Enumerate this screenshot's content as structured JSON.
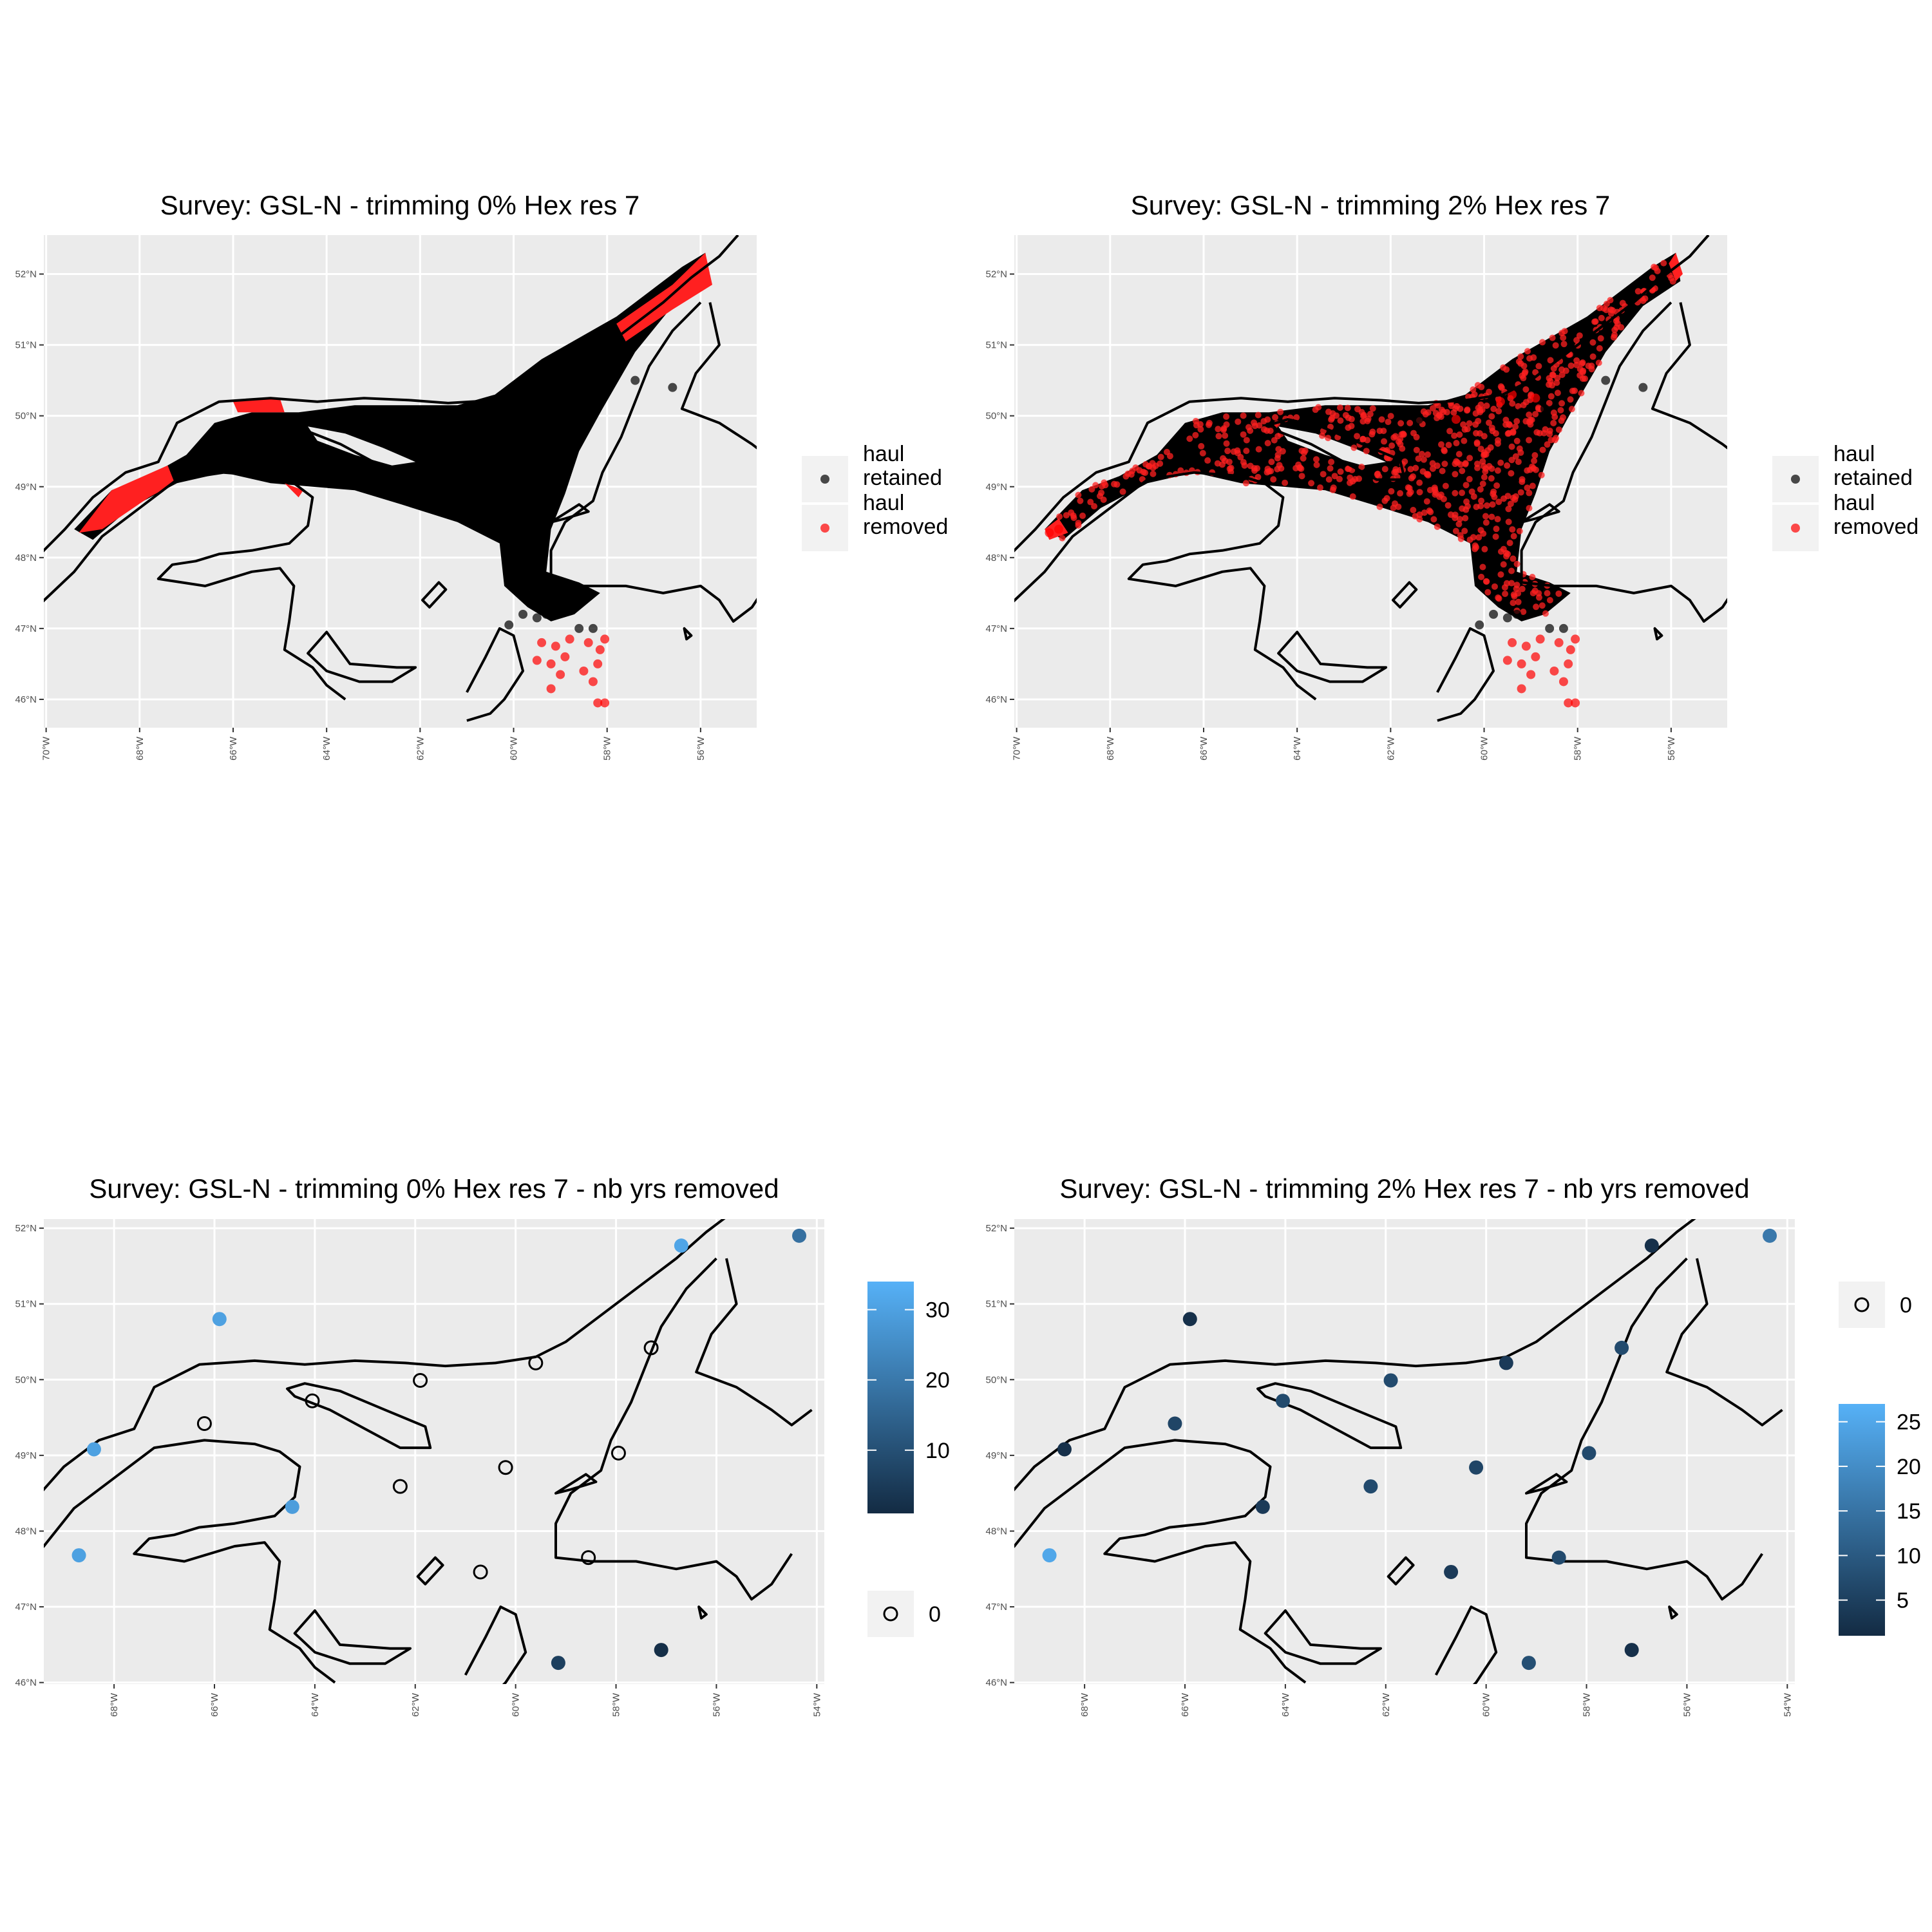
{
  "chart_data": [
    {
      "id": "p1",
      "type": "scatter",
      "map": "Gulf of St. Lawrence",
      "title": "Survey: GSL-N - trimming 0% Hex res 7",
      "xlim": [
        -70.05,
        -54.8
      ],
      "ylim": [
        45.6,
        52.55
      ],
      "x_ticks": [
        -70,
        -68,
        -66,
        -64,
        -62,
        -60,
        -58,
        -56
      ],
      "y_ticks": [
        46,
        47,
        48,
        49,
        50,
        51,
        52
      ],
      "x_tick_labels": [
        "70°W",
        "68°W",
        "66°W",
        "64°W",
        "62°W",
        "60°W",
        "58°W",
        "56°W"
      ],
      "y_tick_labels": [
        "46°N",
        "47°N",
        "48°N",
        "49°N",
        "50°N",
        "51°N",
        "52°N"
      ],
      "legend": {
        "placement": "right",
        "entries": [
          {
            "label": [
              "haul",
              "retained"
            ],
            "color": "#000000"
          },
          {
            "label": [
              "haul",
              "removed"
            ],
            "color": "#ff0000"
          }
        ]
      },
      "retained_region": "northern Gulf deep channels (estuary to Strait of Belle Isle)",
      "removed_region": [
        "upper estuary 67.3–69.3°W",
        "north shore patch near 65–66°W",
        "Strait of Belle Isle 56–57.6°N tip",
        "Cabot Strait outliers"
      ],
      "removed_points": [
        [
          -59.4,
          46.8
        ],
        [
          -59.1,
          46.75
        ],
        [
          -58.8,
          46.85
        ],
        [
          -58.4,
          46.8
        ],
        [
          -58.15,
          46.7
        ],
        [
          -58.05,
          46.85
        ],
        [
          -59.5,
          46.55
        ],
        [
          -59.2,
          46.5
        ],
        [
          -58.9,
          46.6
        ],
        [
          -58.2,
          46.5
        ],
        [
          -58.5,
          46.4
        ],
        [
          -59.0,
          46.35
        ],
        [
          -58.3,
          46.25
        ],
        [
          -59.2,
          46.15
        ],
        [
          -58.2,
          45.95
        ],
        [
          -58.05,
          45.95
        ]
      ],
      "retained_outliers": [
        [
          -60.1,
          47.05
        ],
        [
          -59.8,
          47.2
        ],
        [
          -59.5,
          47.15
        ],
        [
          -59.3,
          47.2
        ],
        [
          -58.6,
          47.0
        ],
        [
          -58.3,
          47.0
        ],
        [
          -56.6,
          50.4
        ],
        [
          -57.4,
          50.5
        ],
        [
          -58.7,
          50.1
        ],
        [
          -59.2,
          50.05
        ],
        [
          -61.4,
          49.95
        ]
      ]
    },
    {
      "id": "p2",
      "type": "scatter",
      "map": "Gulf of St. Lawrence",
      "title": "Survey: GSL-N - trimming 2% Hex res 7",
      "xlim": [
        -70.05,
        -54.8
      ],
      "ylim": [
        45.6,
        52.55
      ],
      "x_ticks": [
        -70,
        -68,
        -66,
        -64,
        -62,
        -60,
        -58,
        -56
      ],
      "y_ticks": [
        46,
        47,
        48,
        49,
        50,
        51,
        52
      ],
      "x_tick_labels": [
        "70°W",
        "68°W",
        "66°W",
        "64°W",
        "62°W",
        "60°W",
        "58°W",
        "56°W"
      ],
      "y_tick_labels": [
        "46°N",
        "47°N",
        "48°N",
        "49°N",
        "50°N",
        "51°N",
        "52°N"
      ],
      "legend": {
        "placement": "right",
        "entries": [
          {
            "label": [
              "haul",
              "retained"
            ],
            "color": "#000000"
          },
          {
            "label": [
              "haul",
              "removed"
            ],
            "color": "#ff0000"
          }
        ]
      },
      "removed_region": "scattered throughout the surveyed area",
      "removed_points": [
        [
          -59.4,
          46.8
        ],
        [
          -59.1,
          46.75
        ],
        [
          -58.8,
          46.85
        ],
        [
          -58.4,
          46.8
        ],
        [
          -58.15,
          46.7
        ],
        [
          -58.05,
          46.85
        ],
        [
          -59.5,
          46.55
        ],
        [
          -59.2,
          46.5
        ],
        [
          -58.9,
          46.6
        ],
        [
          -58.2,
          46.5
        ],
        [
          -58.5,
          46.4
        ],
        [
          -59.0,
          46.35
        ],
        [
          -58.3,
          46.25
        ],
        [
          -59.2,
          46.15
        ],
        [
          -58.2,
          45.95
        ],
        [
          -58.05,
          45.95
        ],
        [
          -59.4,
          50.3
        ],
        [
          -59.65,
          50.2
        ],
        [
          -60.6,
          49.95
        ],
        [
          -58.9,
          50.25
        ],
        [
          -69.3,
          48.35
        ],
        [
          -69.1,
          48.4
        ]
      ],
      "retained_outliers": [
        [
          -60.1,
          47.05
        ],
        [
          -59.8,
          47.2
        ],
        [
          -59.5,
          47.15
        ],
        [
          -59.3,
          47.2
        ],
        [
          -58.6,
          47.0
        ],
        [
          -58.3,
          47.0
        ],
        [
          -56.6,
          50.4
        ],
        [
          -57.4,
          50.5
        ],
        [
          -58.7,
          50.1
        ],
        [
          -59.2,
          50.05
        ],
        [
          -61.4,
          49.95
        ]
      ]
    },
    {
      "id": "p3",
      "type": "scatter",
      "map": "Gulf of St. Lawrence",
      "title": "Survey: GSL-N - trimming 0% Hex res 7 - nb yrs removed",
      "xlim": [
        -69.4,
        -53.85
      ],
      "ylim": [
        45.98,
        52.12
      ],
      "x_ticks": [
        -68,
        -66,
        -64,
        -62,
        -60,
        -58,
        -56,
        -54
      ],
      "y_ticks": [
        46,
        47,
        48,
        49,
        50,
        51,
        52
      ],
      "x_tick_labels": [
        "68°W",
        "66°W",
        "64°W",
        "62°W",
        "60°W",
        "58°W",
        "56°W",
        "54°W"
      ],
      "y_tick_labels": [
        "46°N",
        "47°N",
        "48°N",
        "49°N",
        "50°N",
        "51°N",
        "52°N"
      ],
      "color_scale": {
        "low": "#132b43",
        "high": "#56b1f7",
        "min": 1,
        "max": 34,
        "ticks": [
          10,
          20,
          30
        ],
        "tick_labels": [
          "10",
          "20",
          "30"
        ]
      },
      "zero_legend_label": "0",
      "points": [
        {
          "lon": -68.7,
          "lat": 47.68,
          "value": 30
        },
        {
          "lon": -68.4,
          "lat": 49.08,
          "value": 30
        },
        {
          "lon": -65.9,
          "lat": 50.8,
          "value": 30
        },
        {
          "lon": -64.45,
          "lat": 48.32,
          "value": 29
        },
        {
          "lon": -56.7,
          "lat": 51.77,
          "value": 31
        },
        {
          "lon": -54.35,
          "lat": 51.9,
          "value": 18
        },
        {
          "lon": -59.15,
          "lat": 46.26,
          "value": 6
        },
        {
          "lon": -57.1,
          "lat": 46.43,
          "value": 2
        },
        {
          "lon": -66.2,
          "lat": 49.42,
          "value": 0
        },
        {
          "lon": -64.05,
          "lat": 49.72,
          "value": 0
        },
        {
          "lon": -61.9,
          "lat": 49.99,
          "value": 0
        },
        {
          "lon": -59.6,
          "lat": 50.22,
          "value": 0
        },
        {
          "lon": -57.3,
          "lat": 50.42,
          "value": 0
        },
        {
          "lon": -62.3,
          "lat": 48.59,
          "value": 0
        },
        {
          "lon": -60.2,
          "lat": 48.84,
          "value": 0
        },
        {
          "lon": -57.95,
          "lat": 49.03,
          "value": 0
        },
        {
          "lon": -60.7,
          "lat": 47.46,
          "value": 0
        },
        {
          "lon": -58.55,
          "lat": 47.65,
          "value": 0
        }
      ]
    },
    {
      "id": "p4",
      "type": "scatter",
      "map": "Gulf of St. Lawrence",
      "title": "Survey: GSL-N - trimming 2% Hex res 7 - nb yrs removed",
      "xlim": [
        -69.4,
        -53.85
      ],
      "ylim": [
        45.98,
        52.12
      ],
      "x_ticks": [
        -68,
        -66,
        -64,
        -62,
        -60,
        -58,
        -56,
        -54
      ],
      "y_ticks": [
        46,
        47,
        48,
        49,
        50,
        51,
        52
      ],
      "x_tick_labels": [
        "68°W",
        "66°W",
        "64°W",
        "62°W",
        "60°W",
        "58°W",
        "56°W",
        "54°W"
      ],
      "y_tick_labels": [
        "46°N",
        "47°N",
        "48°N",
        "49°N",
        "50°N",
        "51°N",
        "52°N"
      ],
      "color_scale": {
        "low": "#132b43",
        "high": "#56b1f7",
        "min": 1,
        "max": 27,
        "ticks": [
          5,
          10,
          15,
          20,
          25
        ],
        "tick_labels": [
          "5",
          "10",
          "15",
          "20",
          "25"
        ]
      },
      "zero_legend_label": "0",
      "points": [
        {
          "lon": -68.7,
          "lat": 47.68,
          "value": 25
        },
        {
          "lon": -68.4,
          "lat": 49.08,
          "value": 2
        },
        {
          "lon": -65.9,
          "lat": 50.8,
          "value": 2
        },
        {
          "lon": -64.45,
          "lat": 48.32,
          "value": 4
        },
        {
          "lon": -56.7,
          "lat": 51.77,
          "value": 2
        },
        {
          "lon": -54.35,
          "lat": 51.9,
          "value": 16
        },
        {
          "lon": -59.15,
          "lat": 46.26,
          "value": 8
        },
        {
          "lon": -57.1,
          "lat": 46.43,
          "value": 2
        },
        {
          "lon": -66.2,
          "lat": 49.42,
          "value": 6
        },
        {
          "lon": -64.05,
          "lat": 49.72,
          "value": 7
        },
        {
          "lon": -61.9,
          "lat": 49.99,
          "value": 7
        },
        {
          "lon": -59.6,
          "lat": 50.22,
          "value": 4
        },
        {
          "lon": -57.3,
          "lat": 50.42,
          "value": 7
        },
        {
          "lon": -62.3,
          "lat": 48.59,
          "value": 7
        },
        {
          "lon": -60.2,
          "lat": 48.84,
          "value": 6
        },
        {
          "lon": -57.95,
          "lat": 49.03,
          "value": 7
        },
        {
          "lon": -60.7,
          "lat": 47.46,
          "value": 4
        },
        {
          "lon": -58.55,
          "lat": 47.65,
          "value": 7
        }
      ]
    }
  ]
}
